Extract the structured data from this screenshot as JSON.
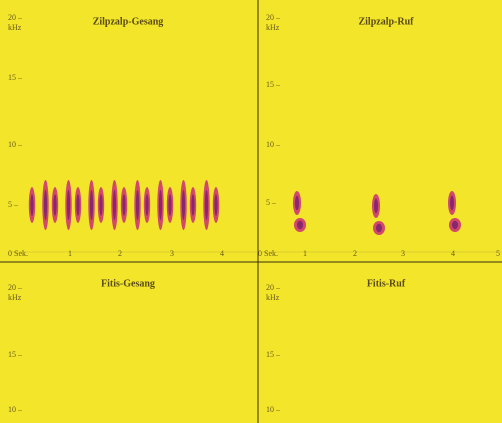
{
  "panels": [
    {
      "title": "Zilpzalp-Gesang",
      "y_labels": [
        "20 –",
        "kHz",
        "15 –",
        "10 –",
        "5 –"
      ],
      "x_labels": [
        "0 Sek.",
        "1",
        "2",
        "3",
        "4"
      ]
    },
    {
      "title": "Zilpzalp-Ruf",
      "y_labels": [
        "20 –",
        "kHz",
        "15 –",
        "10 –",
        "5 –"
      ],
      "x_labels": [
        "0 Sek.",
        "1",
        "2",
        "3",
        "4",
        "5"
      ]
    },
    {
      "title": "Fitis-Gesang",
      "y_labels": [
        "20 –",
        "kHz",
        "15 –",
        "10 –"
      ]
    },
    {
      "title": "Fitis-Ruf",
      "y_labels": [
        "20 –",
        "kHz",
        "15 –",
        "10 –"
      ]
    }
  ]
}
